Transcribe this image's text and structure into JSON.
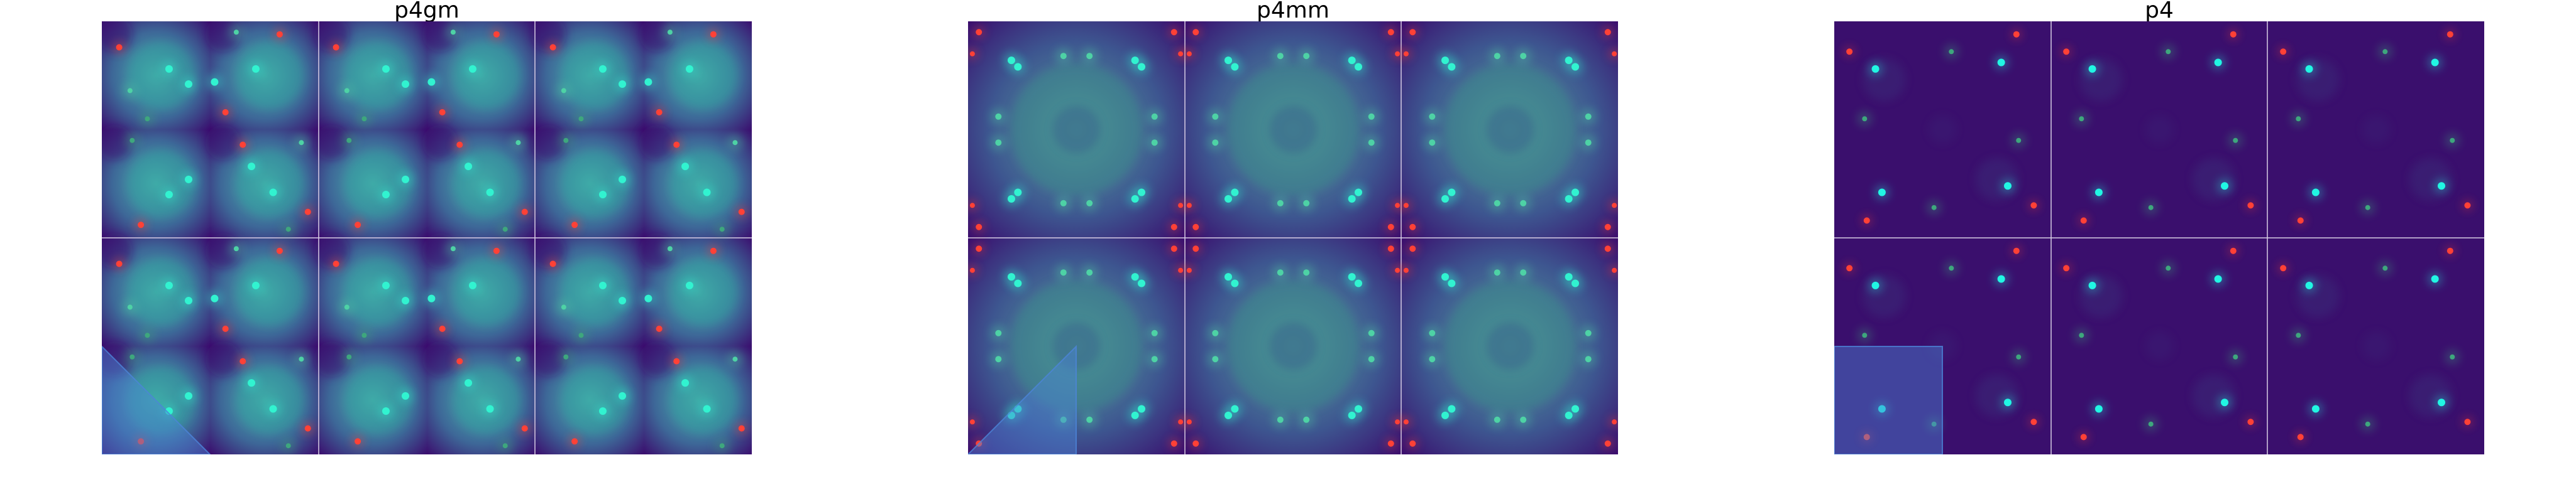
{
  "figure": {
    "panels": [
      {
        "title": "p4gm",
        "symmetry_group": "p4gm",
        "grid": {
          "cols": 3,
          "rows": 2
        },
        "fundamental_region": "triangle",
        "colors": {
          "background_dark": "#3b0f6f",
          "background_mid": "#335f92",
          "background_light": "#2ea3a0",
          "bright_point": "#31f3d0",
          "mid_point": "#4ed2a5",
          "faint_point": "#3ea77d",
          "red_point": "#ff4136",
          "grid_line": "#d8cfe6",
          "highlight_fill": "#4c84d8"
        }
      },
      {
        "title": "p4mm",
        "symmetry_group": "p4mm",
        "grid": {
          "cols": 3,
          "rows": 2
        },
        "fundamental_region": "triangle",
        "colors": {
          "background_dark": "#3a0e6e",
          "background_mid": "#334d8a",
          "background_light": "#3b8b8c",
          "bright_point": "#31f3d0",
          "mid_point": "#4ed2a5",
          "faint_point": "#3ea77d",
          "red_point": "#ff4136",
          "grid_line": "#d8cfe6",
          "highlight_fill": "#4c84d8"
        }
      },
      {
        "title": "p4",
        "symmetry_group": "p4",
        "grid": {
          "cols": 3,
          "rows": 2
        },
        "fundamental_region": "square",
        "colors": {
          "background_dark": "#3a0f6d",
          "background_mid": "#3b2f7a",
          "background_light": "#4a6a90",
          "bright_point": "#21f6e3",
          "mid_point": "#4ed2a5",
          "faint_point": "#3ea77d",
          "red_point": "#ff4136",
          "grid_line": "#d8cfe6",
          "highlight_fill": "#4c84d8"
        }
      }
    ]
  }
}
